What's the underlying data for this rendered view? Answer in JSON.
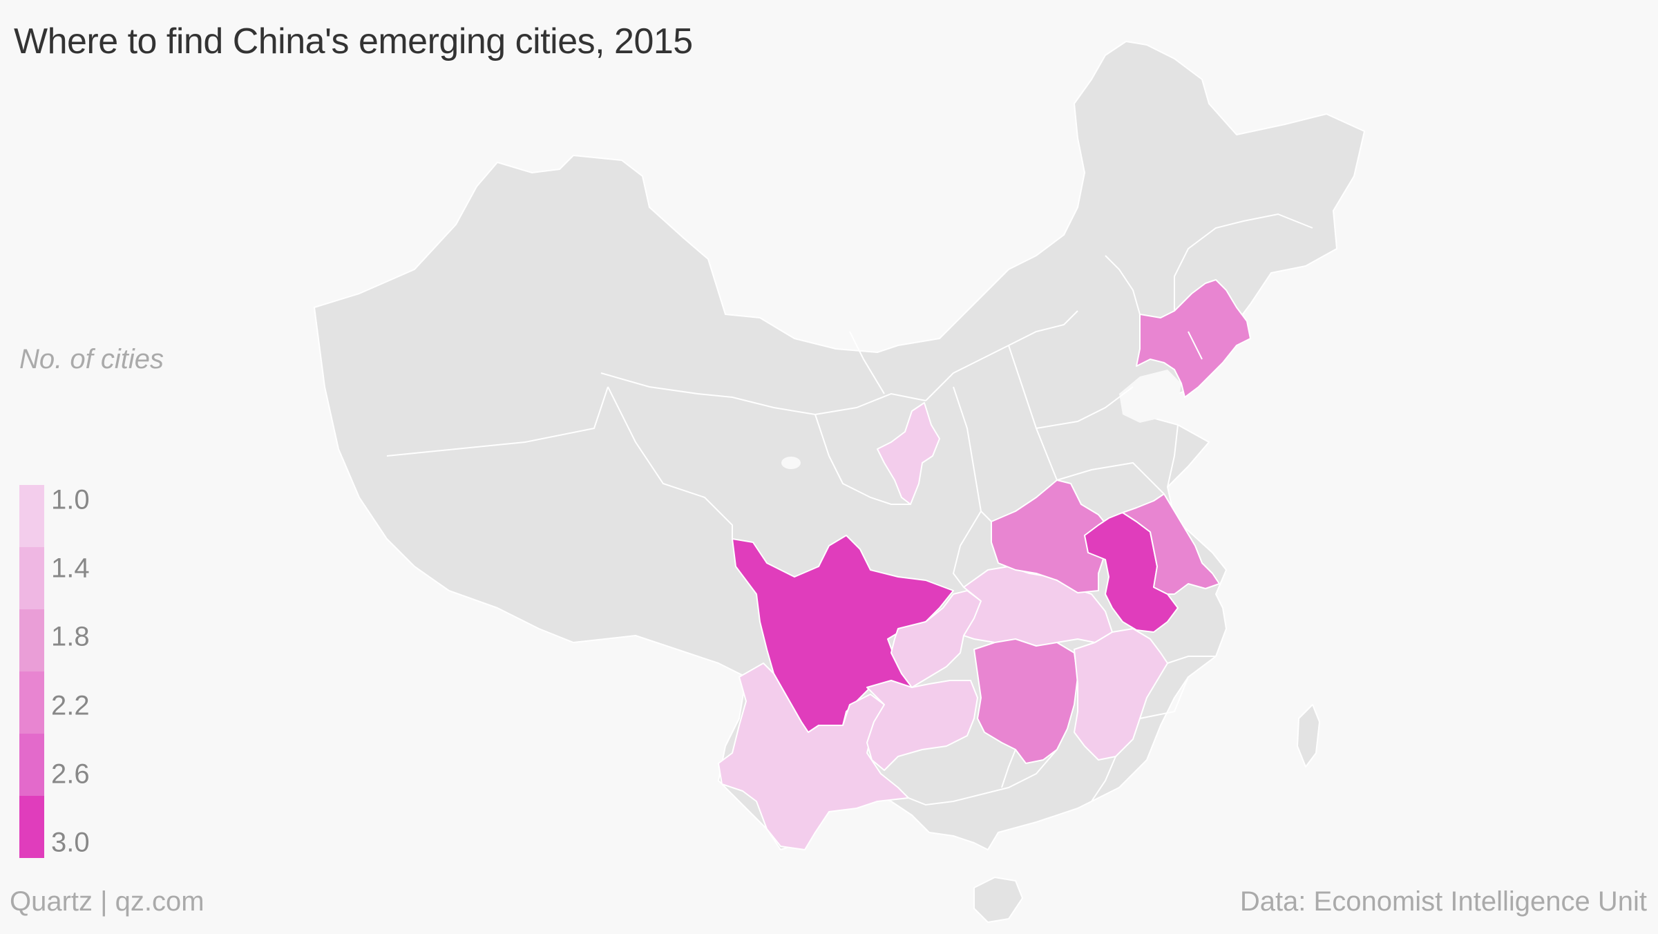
{
  "title": "Where to find China's emerging cities, 2015",
  "legend": {
    "title": "No. of cities",
    "ticks": [
      "1.0",
      "1.4",
      "1.8",
      "2.2",
      "2.6",
      "3.0"
    ],
    "colors": [
      "#f3cdec",
      "#efb7e3",
      "#ea9ed7",
      "#e885d1",
      "#e36acb",
      "#e03dbc"
    ]
  },
  "colors": {
    "no_data": "#e3e3e3",
    "water": "#f8f8f8",
    "border": "#ffffff"
  },
  "map_data": {
    "regions": [
      {
        "id": "sichuan",
        "value": 3
      },
      {
        "id": "anhui",
        "value": 3
      },
      {
        "id": "liaoning",
        "value": 2
      },
      {
        "id": "henan",
        "value": 2
      },
      {
        "id": "jiangsu",
        "value": 2
      },
      {
        "id": "hunan",
        "value": 2
      },
      {
        "id": "ningxia",
        "value": 1
      },
      {
        "id": "yunnan",
        "value": 1
      },
      {
        "id": "guizhou",
        "value": 1
      },
      {
        "id": "chongqing",
        "value": 1
      },
      {
        "id": "hubei",
        "value": 1
      },
      {
        "id": "jiangxi",
        "value": 1
      }
    ]
  },
  "footer": {
    "source_left": "Quartz | qz.com",
    "source_right": "Data: Economist Intelligence Unit"
  }
}
